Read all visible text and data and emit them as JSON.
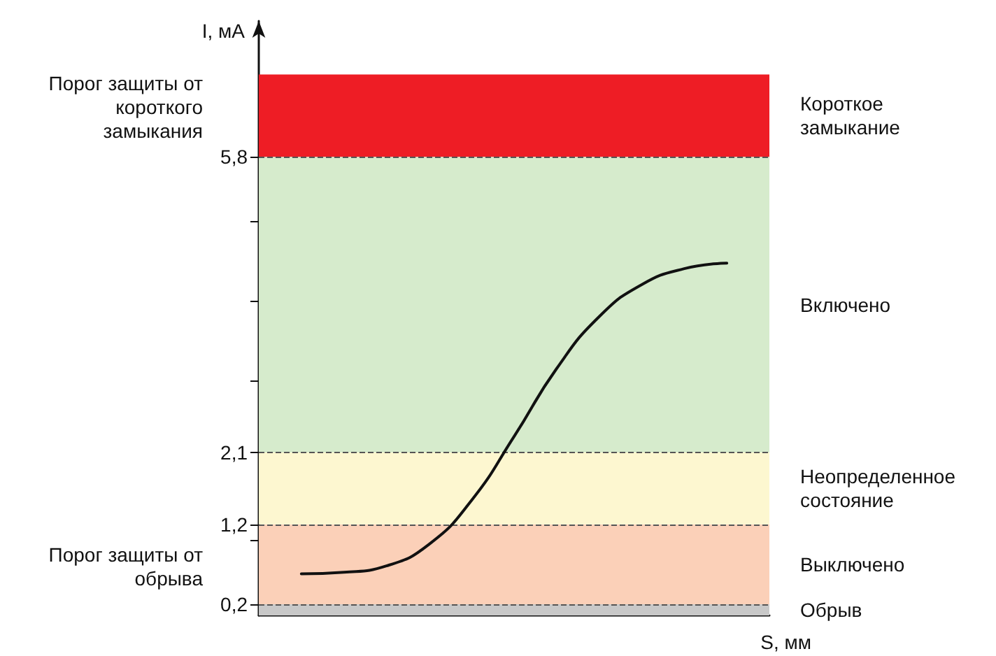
{
  "chart_data": {
    "type": "line",
    "xlabel": "S, мм",
    "ylabel": "I, мА",
    "categories": [
      null,
      null,
      null,
      null,
      null,
      null,
      null,
      null,
      null,
      null,
      null,
      null,
      null
    ],
    "series": [
      {
        "color": "#111111",
        "values": [
          null,
          0.58,
          0.6,
          0.68,
          0.95,
          1.5,
          2.3,
          3.15,
          3.8,
          4.2,
          4.4,
          4.47,
          null
        ]
      }
    ],
    "ylim": [
      0.06,
      7.5
    ],
    "yticks": [
      {
        "value": 0.2,
        "label": "0,2"
      },
      {
        "value": 1,
        "label": null
      },
      {
        "value": 1.2,
        "label": "1,2"
      },
      {
        "value": 2.1,
        "label": "2,1"
      },
      {
        "value": 3,
        "label": null
      },
      {
        "value": 4,
        "label": null
      },
      {
        "value": 5,
        "label": null
      },
      {
        "value": 5.8,
        "label": "5,8"
      }
    ],
    "bands": [
      {
        "axis": "y",
        "from": 0.06,
        "to": 0.2,
        "label": "Обрыв",
        "color": "#c8c8c8"
      },
      {
        "axis": "y",
        "from": 0.2,
        "to": 1.2,
        "label": "Выключено",
        "color": "#fbd0b8"
      },
      {
        "axis": "y",
        "from": 1.2,
        "to": 2.1,
        "label": "Неопределенное состояние",
        "color": "#fdf7d0"
      },
      {
        "axis": "y",
        "from": 2.1,
        "to": 5.8,
        "label": "Включено",
        "color": "#d6ebcc"
      },
      {
        "axis": "y",
        "from": 5.8,
        "to": 6.83,
        "label": "Короткое замыкание",
        "color": "#ee1d25"
      }
    ],
    "ref_lines": [
      {
        "axis": "y",
        "value": 0.2,
        "label": "Порог защиты от обрыва",
        "line_style": "dashed",
        "color": "#555555"
      },
      {
        "axis": "y",
        "value": 1.2,
        "label": null,
        "line_style": "dashed",
        "color": "#555555"
      },
      {
        "axis": "y",
        "value": 2.1,
        "label": null,
        "line_style": "dashed",
        "color": "#555555"
      },
      {
        "axis": "y",
        "value": 5.8,
        "label": "Порог защиты от короткого замыкания",
        "line_style": "dashed",
        "color": "#555555"
      }
    ],
    "tick_labels": "y",
    "grid": false,
    "marker": "none",
    "line_style": "solid"
  }
}
